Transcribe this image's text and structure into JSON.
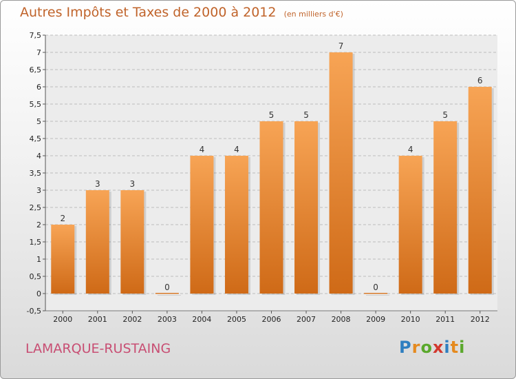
{
  "chart_data": {
    "type": "bar",
    "title": "Autres Impôts et Taxes de 2000 à 2012",
    "subtitle": "(en milliers d'€)",
    "categories": [
      "2000",
      "2001",
      "2002",
      "2003",
      "2004",
      "2005",
      "2006",
      "2007",
      "2008",
      "2009",
      "2010",
      "2011",
      "2012"
    ],
    "values": [
      2,
      3,
      3,
      0,
      4,
      4,
      5,
      5,
      7,
      0,
      4,
      5,
      6
    ],
    "ylim": [
      -0.5,
      7.5
    ],
    "yticks": [
      "-0,5",
      "0",
      "0,5",
      "1",
      "1,5",
      "2",
      "2,5",
      "3",
      "3,5",
      "4",
      "4,5",
      "5",
      "5,5",
      "6",
      "6,5",
      "7",
      "7,5"
    ],
    "ytick_values": [
      -0.5,
      0,
      0.5,
      1,
      1.5,
      2,
      2.5,
      3,
      3.5,
      4,
      4.5,
      5,
      5.5,
      6,
      6.5,
      7,
      7.5
    ],
    "xlabel": "",
    "ylabel": "",
    "grid": true,
    "bar_color": "#f0923f"
  },
  "footer": {
    "commune": "LAMARQUE-RUSTAING",
    "logo_letters": [
      "P",
      "r",
      "o",
      "x",
      "i",
      "t",
      "i"
    ],
    "logo_colors": [
      "#2f7fc0",
      "#e58a1f",
      "#5aa82c",
      "#d2382e",
      "#2f7fc0",
      "#e58a1f",
      "#5aa82c"
    ]
  }
}
